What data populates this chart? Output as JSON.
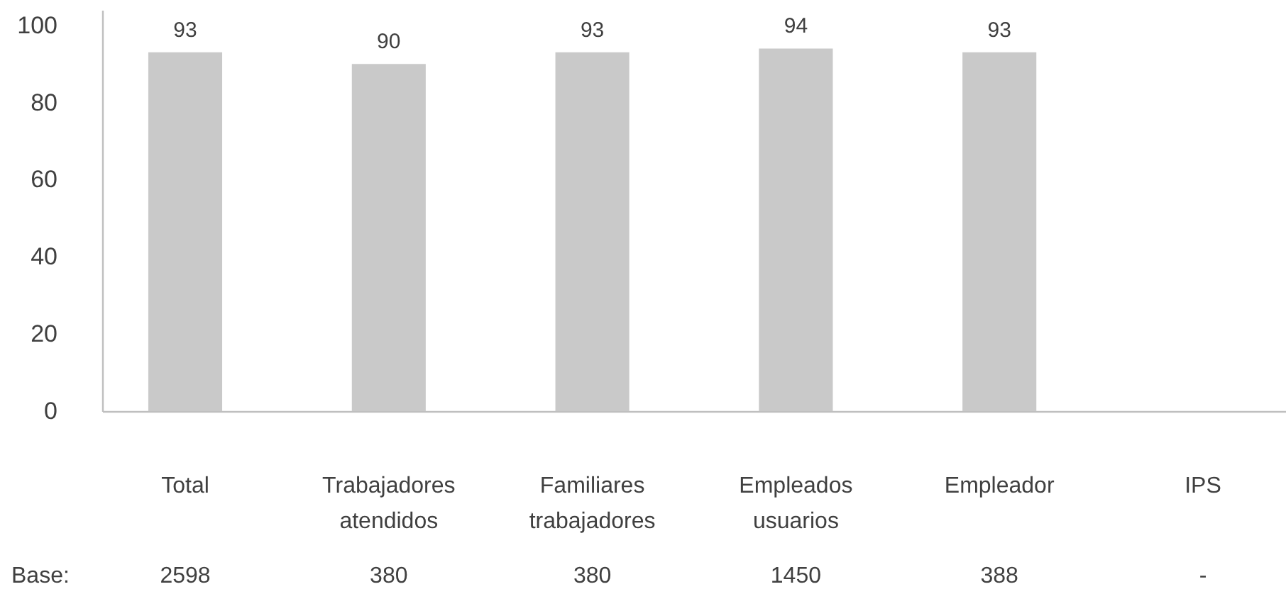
{
  "chart_data": {
    "type": "bar",
    "categories": [
      "Total",
      "Trabajadores atendidos",
      "Familiares trabajadores",
      "Empleados usuarios",
      "Empleador",
      "IPS"
    ],
    "values": [
      93,
      90,
      93,
      94,
      93,
      null
    ],
    "color": "#c9c9c9",
    "ylim": [
      0,
      104
    ],
    "yticks": [
      0,
      20,
      40,
      60,
      80,
      100
    ],
    "data_labels": true,
    "annotations": [
      "Base:",
      "2598",
      "380",
      "380",
      "1450",
      "388",
      "-"
    ]
  }
}
